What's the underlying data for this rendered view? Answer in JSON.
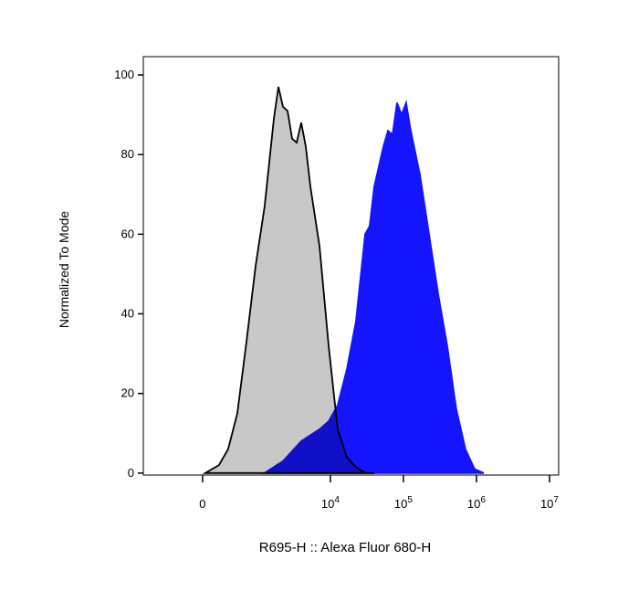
{
  "chart_data": {
    "type": "histogram-overlay",
    "xlabel": "R695-H :: Alexa Fluor 680-H",
    "ylabel": "Normalized To Mode",
    "xscale": "arcsinh",
    "x_linear_width": 356,
    "xlim": [
      -1125,
      13350000
    ],
    "xticks": [
      0,
      {
        "value": 10000,
        "label": "10",
        "exponent": "4"
      },
      {
        "value": 100000,
        "label": "10",
        "exponent": "5"
      },
      {
        "value": 1000000,
        "label": "10",
        "exponent": "6"
      },
      {
        "value": 10000000,
        "label": "10",
        "exponent": "7"
      }
    ],
    "ylim": [
      -0.5,
      104.6
    ],
    "yticks": [
      0,
      20,
      40,
      60,
      80,
      100
    ],
    "series": [
      {
        "color": "#c8c8c8",
        "stroke": "#000000",
        "x": [
          31,
          193,
          319,
          473,
          666,
          913,
          1235,
          1663,
          1926,
          2229,
          2577,
          2980,
          3446,
          3980,
          4603,
          5315,
          7090,
          9452,
          12600,
          16800,
          22400,
          29900,
          39900
        ],
        "values": [
          0,
          2,
          6,
          15,
          33,
          52,
          67,
          89,
          97,
          92,
          91,
          84,
          83,
          88,
          82,
          72,
          57,
          32,
          11,
          4,
          1.5,
          0,
          0
        ]
      },
      {
        "color": "#1414ff",
        "stroke": "#1414ff",
        "x": [
          1235,
          2229,
          3980,
          7090,
          9452,
          12600,
          16800,
          22400,
          29900,
          34500,
          39900,
          53200,
          61400,
          70900,
          81800,
          94400,
          109000,
          126000,
          168000,
          224000,
          299000,
          398000,
          531000,
          708000,
          944000,
          1259000
        ],
        "values": [
          0,
          3,
          8,
          11,
          13,
          17,
          26,
          38,
          60,
          62,
          72,
          82,
          86,
          85,
          93,
          90,
          93,
          86,
          75,
          60,
          45,
          32,
          16,
          6,
          1,
          0
        ]
      }
    ]
  }
}
